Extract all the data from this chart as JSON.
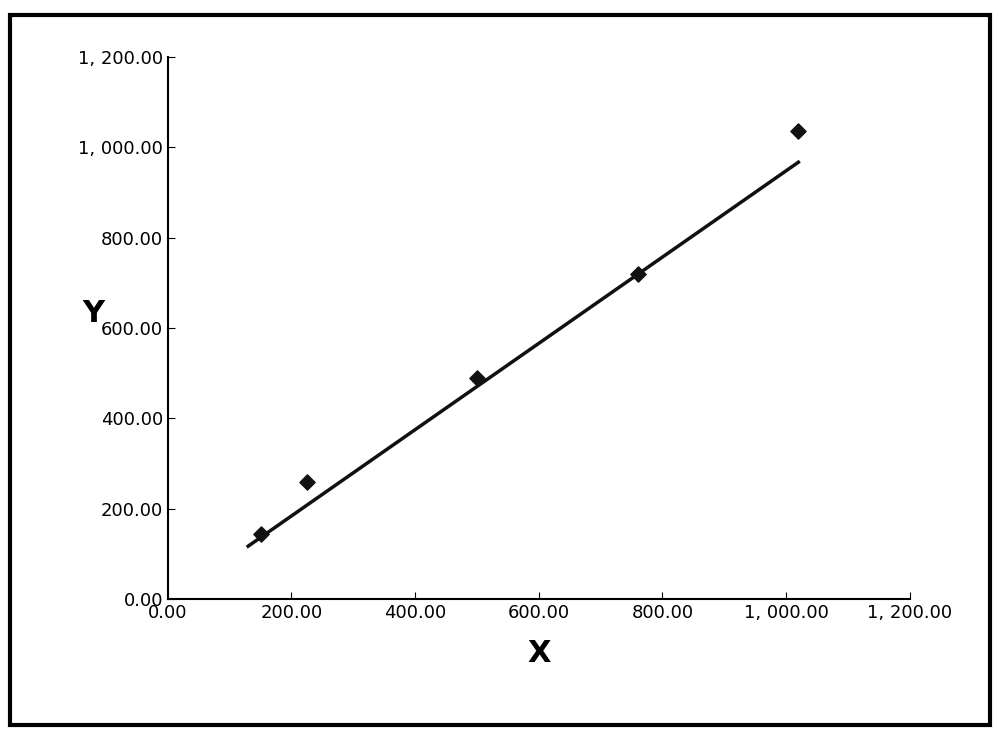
{
  "x_data": [
    150,
    225,
    500,
    760,
    1020
  ],
  "y_data": [
    145,
    260,
    490,
    720,
    1035
  ],
  "line_x": [
    130,
    1020
  ],
  "line_slope": 0.9545,
  "line_intercept": -7.0,
  "xlabel": "X",
  "ylabel": "Y",
  "xlim": [
    0,
    1200
  ],
  "ylim": [
    0,
    1200
  ],
  "xticks": [
    0,
    200,
    400,
    600,
    800,
    1000,
    1200
  ],
  "yticks": [
    0,
    200,
    400,
    600,
    800,
    1000,
    1200
  ],
  "marker_color": "#111111",
  "line_color": "#111111",
  "bg_color": "#ffffff",
  "outer_bg": "#ffffff",
  "label_fontsize": 22,
  "tick_fontsize": 13
}
